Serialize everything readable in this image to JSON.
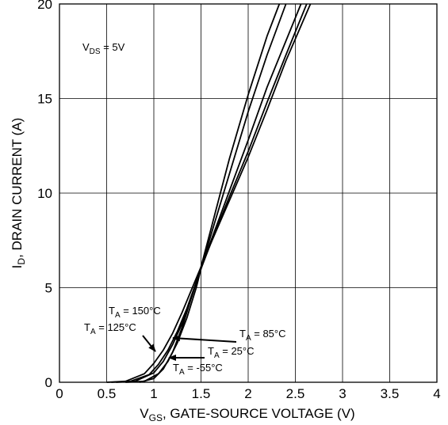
{
  "chart_data": {
    "type": "line",
    "title": "",
    "xlabel": {
      "main": "V",
      "sub": "GS",
      "rest": ", GATE-SOURCE VOLTAGE (V)"
    },
    "ylabel": {
      "main": "I",
      "sub": "D",
      "rest": ", DRAIN CURRENT (A)"
    },
    "xlim": [
      0,
      4
    ],
    "ylim": [
      0,
      20
    ],
    "xticks": [
      "0",
      "0.5",
      "1",
      "1.5",
      "2",
      "2.5",
      "3",
      "3.5",
      "4"
    ],
    "yticks": [
      "0",
      "5",
      "10",
      "15",
      "20"
    ],
    "grid": true,
    "condition": {
      "main": "V",
      "sub": "DS",
      "rest": " = 5V"
    },
    "series": [
      {
        "name": "T_A = 150°C",
        "label": {
          "main": "T",
          "sub": "A",
          "rest": " = 150°C"
        },
        "x": [
          0.5,
          0.7,
          0.9,
          1.0,
          1.1,
          1.2,
          1.3,
          1.4,
          1.5,
          1.6,
          1.8,
          2.0,
          2.2,
          2.4,
          2.66
        ],
        "y": [
          0,
          0.05,
          0.45,
          1.0,
          1.7,
          2.6,
          3.7,
          4.9,
          6.1,
          7.3,
          9.6,
          11.9,
          14.4,
          17.0,
          20
        ]
      },
      {
        "name": "T_A = 125°C",
        "label": {
          "main": "T",
          "sub": "A",
          "rest": " = 125°C"
        },
        "x": [
          0.55,
          0.75,
          0.95,
          1.05,
          1.15,
          1.25,
          1.35,
          1.45,
          1.5,
          1.6,
          1.8,
          2.0,
          2.2,
          2.4,
          2.62
        ],
        "y": [
          0,
          0.05,
          0.4,
          0.95,
          1.7,
          2.7,
          3.9,
          5.3,
          6.0,
          7.3,
          9.8,
          12.2,
          14.8,
          17.3,
          20
        ]
      },
      {
        "name": "T_A = 85°C",
        "label": {
          "main": "T",
          "sub": "A",
          "rest": " = 85°C"
        },
        "x": [
          0.6,
          0.8,
          1.0,
          1.1,
          1.2,
          1.3,
          1.4,
          1.5,
          1.6,
          1.8,
          2.0,
          2.2,
          2.56
        ],
        "y": [
          0,
          0.05,
          0.5,
          1.1,
          2.0,
          3.1,
          4.5,
          6.0,
          7.4,
          10.1,
          12.8,
          15.6,
          20
        ]
      },
      {
        "name": "T_A = 25°C",
        "label": {
          "main": "T",
          "sub": "A",
          "rest": " = 25°C"
        },
        "x": [
          0.7,
          0.9,
          1.05,
          1.15,
          1.25,
          1.35,
          1.45,
          1.5,
          1.6,
          1.8,
          2.0,
          2.2,
          2.4
        ],
        "y": [
          0,
          0.05,
          0.45,
          1.1,
          2.1,
          3.4,
          5.0,
          6.0,
          7.7,
          11.0,
          14.3,
          17.3,
          20
        ]
      },
      {
        "name": "T_A = -55°C",
        "label": {
          "main": "T",
          "sub": "A",
          "rest": " = -55°C"
        },
        "x": [
          0.85,
          1.0,
          1.1,
          1.2,
          1.3,
          1.4,
          1.5,
          1.6,
          1.8,
          2.0,
          2.2,
          2.33
        ],
        "y": [
          0,
          0.2,
          0.7,
          1.6,
          2.9,
          4.5,
          6.1,
          8.0,
          11.8,
          15.2,
          18.3,
          20
        ]
      }
    ]
  }
}
